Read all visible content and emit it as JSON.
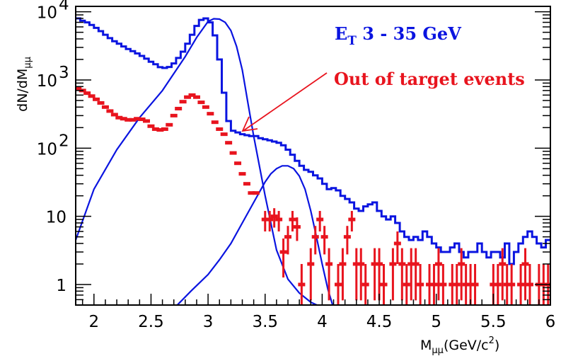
{
  "chart_data": {
    "type": "line",
    "xlabel": "M",
    "xlabel_sub": "μμ",
    "xlabel_unit": "(GeV/c",
    "xlabel_unit_sup": "2",
    "xlabel_unit_close": ")",
    "ylabel": "dN/dM",
    "ylabel_sub": "μμ",
    "xlim": [
      1.84,
      6.0
    ],
    "ylim": [
      0.5,
      12000
    ],
    "y_scale": "log",
    "x_ticks": [
      2,
      2.5,
      3,
      3.5,
      4,
      4.5,
      5,
      5.5,
      6
    ],
    "x_tick_labels": [
      "2",
      "2.5",
      "3",
      "3.5",
      "4",
      "4.5",
      "5",
      "5.5",
      "6"
    ],
    "y_ticks": [
      {
        "value": 1,
        "label": "1",
        "sup": ""
      },
      {
        "value": 10,
        "label": "10",
        "sup": ""
      },
      {
        "value": 100,
        "label": "10",
        "sup": "2"
      },
      {
        "value": 1000,
        "label": "10",
        "sup": "3"
      },
      {
        "value": 10000,
        "label": "10",
        "sup": "4"
      }
    ],
    "grid": false,
    "annotations": {
      "et_main": "E",
      "et_sub": "T",
      "et_rest": " 3 - 35 GeV",
      "out_of_target": "Out of target events"
    },
    "colors": {
      "total": "#0a14e0",
      "fit": "#0a14e0",
      "out_of_target": "#e8141e",
      "arrow": "#e8141e",
      "axes": "#000000"
    },
    "series": [
      {
        "type": "histogram",
        "bin_width": 0.04,
        "x_start": 1.84,
        "values": [
          8000,
          7400,
          7000,
          6400,
          5800,
          5200,
          4600,
          4100,
          3700,
          3400,
          3100,
          2850,
          2650,
          2450,
          2250,
          2050,
          1850,
          1700,
          1540,
          1500,
          1550,
          1750,
          2100,
          2600,
          3400,
          4600,
          6200,
          7600,
          8000,
          7000,
          4500,
          2000,
          650,
          250,
          180,
          170,
          160,
          155,
          150,
          150,
          140,
          135,
          130,
          125,
          120,
          110,
          95,
          80,
          65,
          55,
          48,
          45,
          40,
          36,
          30,
          25,
          26,
          24,
          20,
          18,
          16,
          13,
          12,
          14,
          15,
          16,
          12,
          10,
          9,
          10,
          8,
          6,
          5,
          4.5,
          5,
          4.5,
          6,
          5,
          4,
          3.5,
          3,
          3,
          3.5,
          4,
          3,
          2.5,
          3,
          3,
          4,
          3,
          2.5,
          3,
          3,
          2.5,
          4,
          2,
          3,
          4,
          5,
          6,
          5,
          4,
          3.5,
          4.5
        ]
      },
      {
        "type": "curve",
        "x": [
          1.84,
          2.0,
          2.2,
          2.4,
          2.6,
          2.8,
          2.9,
          3.0,
          3.05,
          3.1,
          3.15,
          3.2,
          3.25,
          3.3,
          3.35,
          3.4,
          3.5,
          3.6,
          3.7,
          3.8,
          3.9,
          4.0,
          4.1
        ],
        "y": [
          4.5,
          25,
          95,
          280,
          700,
          2200,
          4200,
          7200,
          7900,
          7800,
          7000,
          5300,
          3100,
          1400,
          450,
          150,
          20,
          3.2,
          1.2,
          0.75,
          0.55,
          0.46,
          0.4
        ]
      },
      {
        "type": "curve",
        "x": [
          2.73,
          2.85,
          3.0,
          3.1,
          3.2,
          3.3,
          3.4,
          3.5,
          3.55,
          3.6,
          3.65,
          3.7,
          3.75,
          3.8,
          3.85,
          3.9,
          3.95,
          4.0,
          4.05,
          4.1
        ],
        "y": [
          0.5,
          0.8,
          1.4,
          2.3,
          4.0,
          8.0,
          16,
          32,
          42,
          50,
          55,
          55,
          50,
          39,
          25,
          12,
          5,
          2,
          0.85,
          0.45
        ]
      },
      {
        "type": "points",
        "x": [
          1.86,
          1.9,
          1.94,
          1.98,
          2.02,
          2.06,
          2.1,
          2.14,
          2.18,
          2.22,
          2.26,
          2.3,
          2.34,
          2.38,
          2.42,
          2.46,
          2.5,
          2.54,
          2.58,
          2.62,
          2.66,
          2.7,
          2.74,
          2.78,
          2.82,
          2.86,
          2.9,
          2.94,
          2.98,
          3.02,
          3.06,
          3.1,
          3.14,
          3.18,
          3.22,
          3.26,
          3.3,
          3.34,
          3.38,
          3.42,
          3.46,
          3.5,
          3.54,
          3.58,
          3.62,
          3.66,
          3.7,
          3.74,
          3.78,
          3.82,
          3.86,
          3.9,
          3.94,
          3.98,
          4.02,
          4.06,
          4.1,
          4.14,
          4.18,
          4.22,
          4.26,
          4.3,
          4.34,
          4.38,
          4.42,
          4.46,
          4.5,
          4.54,
          4.58,
          4.62,
          4.66,
          4.7,
          4.74,
          4.78,
          4.82,
          4.86,
          4.9,
          4.94,
          4.98,
          5.02,
          5.06,
          5.1,
          5.14,
          5.18,
          5.22,
          5.26,
          5.3,
          5.34,
          5.38,
          5.42,
          5.46,
          5.5,
          5.54,
          5.58,
          5.62,
          5.66,
          5.7,
          5.74,
          5.78,
          5.82,
          5.86,
          5.9,
          5.94,
          5.98
        ],
        "y": [
          750,
          700,
          640,
          580,
          520,
          460,
          400,
          350,
          310,
          280,
          270,
          260,
          260,
          270,
          265,
          250,
          210,
          190,
          185,
          190,
          220,
          300,
          380,
          480,
          560,
          600,
          560,
          470,
          400,
          320,
          240,
          190,
          160,
          120,
          85,
          60,
          42,
          30,
          22,
          22,
          null,
          9,
          9,
          10,
          9,
          3,
          5,
          9,
          7,
          1,
          null,
          2,
          5,
          9,
          5,
          2,
          null,
          1,
          2,
          5,
          9,
          2,
          2,
          1,
          null,
          2,
          2,
          1,
          null,
          2,
          4,
          2,
          1,
          2,
          2,
          1,
          null,
          1,
          1,
          2,
          1,
          null,
          1,
          1,
          2,
          1,
          1,
          1,
          null,
          null,
          null,
          1,
          1,
          2,
          1,
          1,
          null,
          1,
          2,
          1,
          null,
          1,
          1,
          1
        ]
      }
    ]
  }
}
